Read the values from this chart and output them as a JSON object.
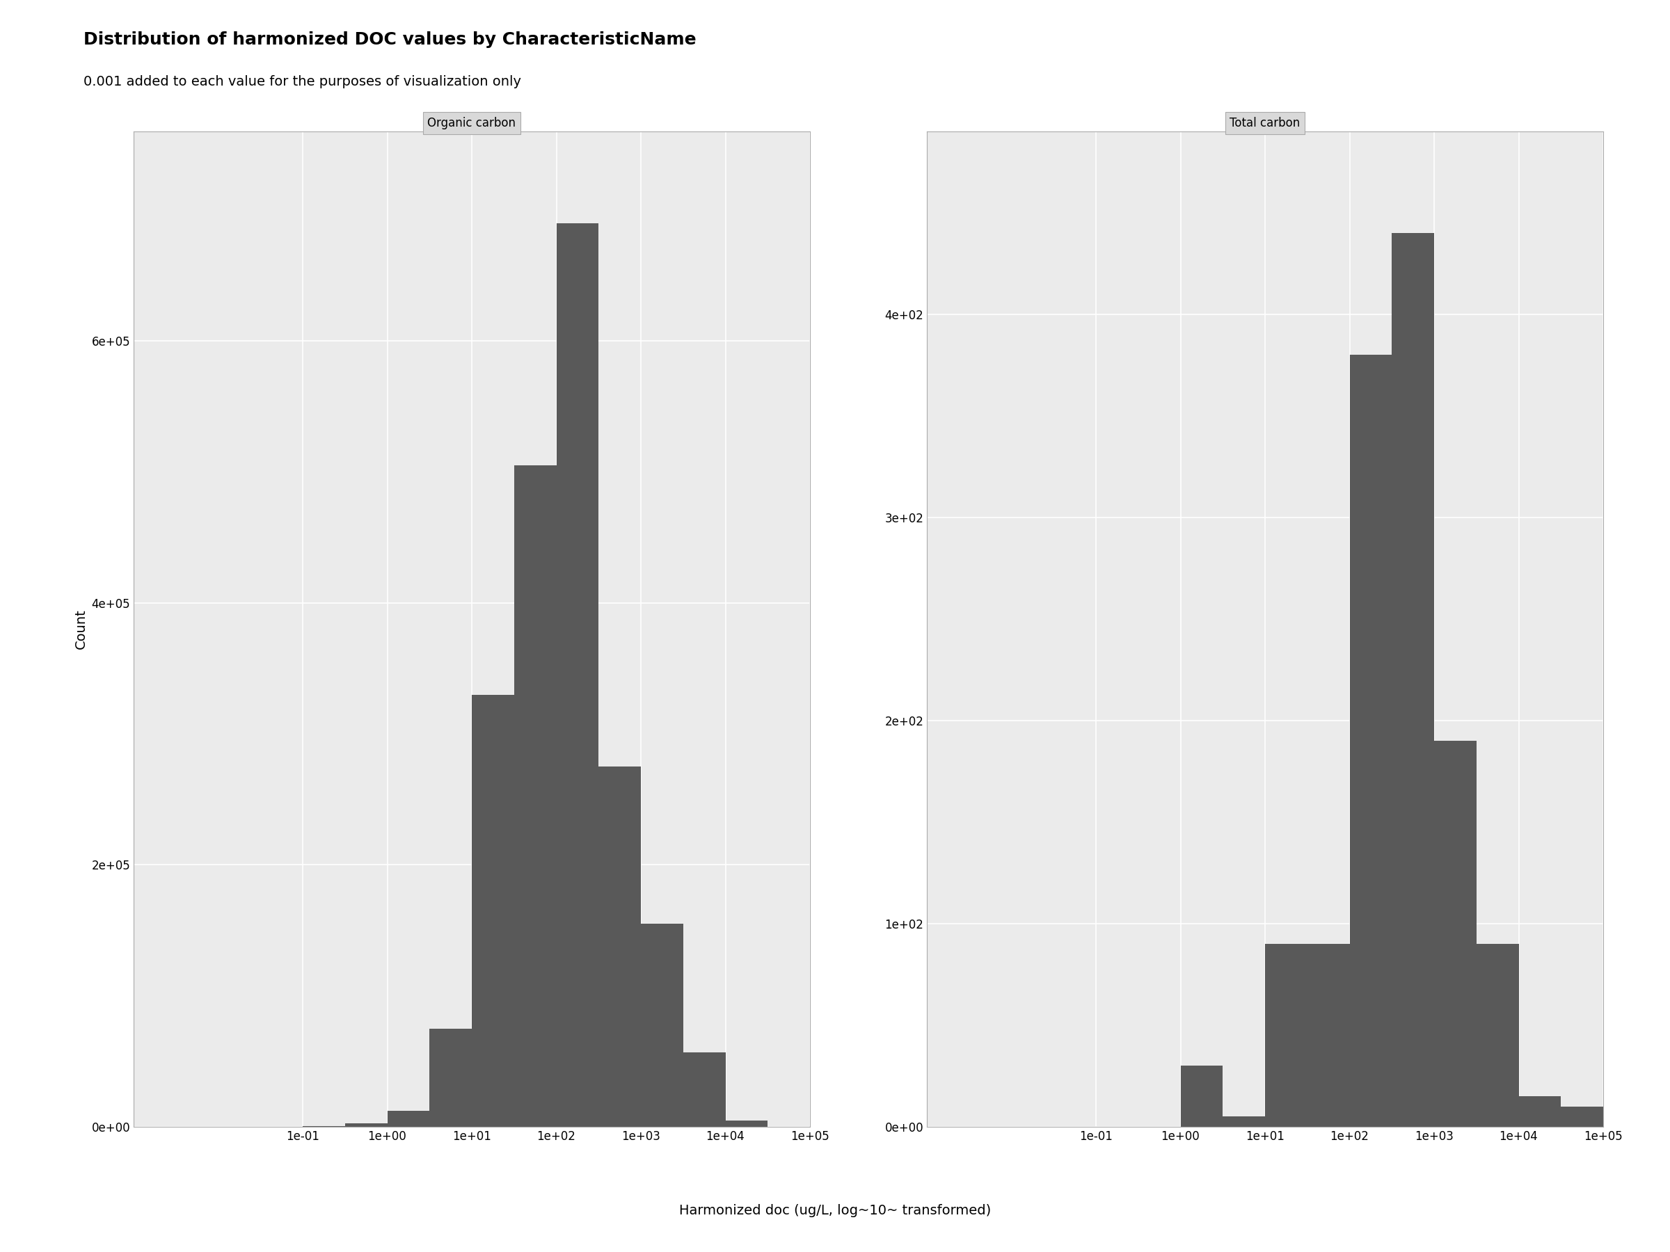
{
  "title": "Distribution of harmonized DOC values by CharacteristicName",
  "subtitle": "0.001 added to each value for the purposes of visualization only",
  "xlabel": "Harmonized doc (ug/L, log~10~ transformed)",
  "ylabel": "Count",
  "panel_labels": [
    "Organic carbon",
    "Total carbon"
  ],
  "bar_color": "#595959",
  "background_color": "#ffffff",
  "panel_bg_color": "#ebebeb",
  "grid_color": "#ffffff",
  "panel_border_color": "#aaaaaa",
  "title_fontsize": 18,
  "subtitle_fontsize": 14,
  "axis_label_fontsize": 14,
  "tick_fontsize": 12,
  "panel_label_fontsize": 12,
  "bin_edges_log10": [
    -3,
    -2.5,
    -2,
    -1.5,
    -1,
    -0.5,
    0,
    0.5,
    1,
    1.5,
    2,
    2.5,
    3,
    3.5,
    4,
    4.5,
    5
  ],
  "organic_carbon_counts": [
    50,
    10,
    100,
    200,
    600,
    2500,
    12000,
    75000,
    330000,
    505000,
    690000,
    275000,
    155000,
    57000,
    5000,
    200
  ],
  "total_carbon_counts": [
    0,
    0,
    0,
    0,
    0,
    0,
    30,
    5,
    90,
    90,
    380,
    440,
    190,
    90,
    15,
    10
  ],
  "xlim_log10": [
    -3,
    5
  ],
  "xticks_log10": [
    -1,
    0,
    1,
    2,
    3,
    4,
    5
  ],
  "organic_ylim": [
    0,
    760000
  ],
  "organic_yticks": [
    0,
    200000,
    400000,
    600000
  ],
  "total_ylim": [
    0,
    490
  ],
  "total_yticks": [
    0,
    100,
    200,
    300,
    400
  ]
}
